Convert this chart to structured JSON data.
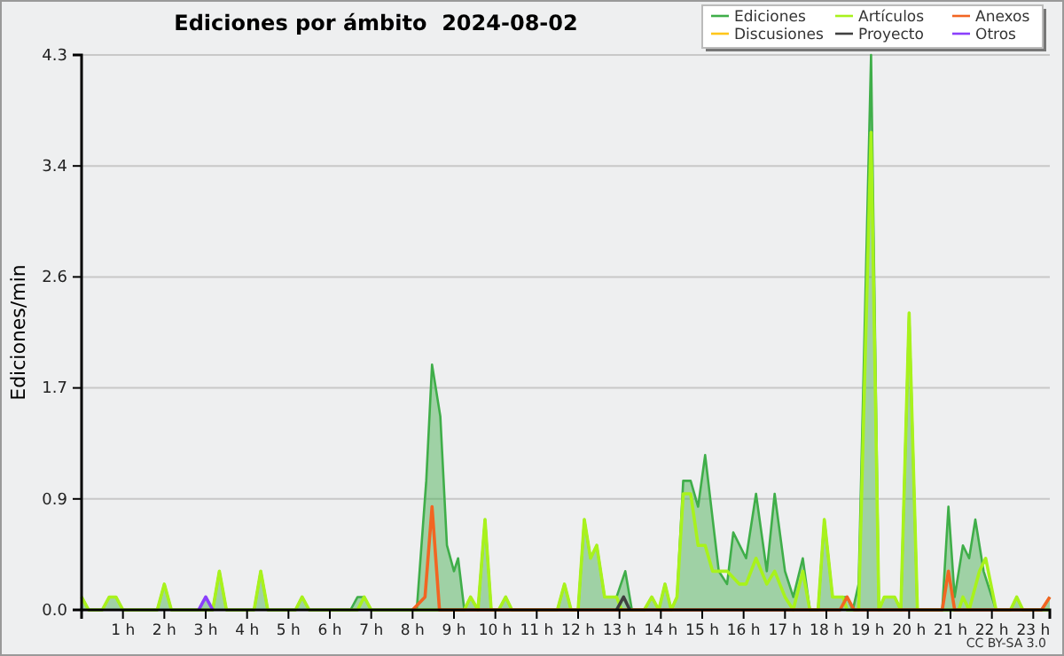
{
  "chart_data": {
    "type": "line",
    "title": "Ediciones por ámbito  2024-08-02",
    "ylabel": "Ediciones/min",
    "annotations": [
      "CC BY-SA 3.0"
    ],
    "xlim": [
      0,
      23.4
    ],
    "xticks": [
      {
        "value": 1,
        "label": "1 h"
      },
      {
        "value": 2,
        "label": "2 h"
      },
      {
        "value": 3,
        "label": "3 h"
      },
      {
        "value": 4,
        "label": "4 h"
      },
      {
        "value": 5,
        "label": "5 h"
      },
      {
        "value": 6,
        "label": "6 h"
      },
      {
        "value": 7,
        "label": "7 h"
      },
      {
        "value": 8,
        "label": "8 h"
      },
      {
        "value": 9,
        "label": "9 h"
      },
      {
        "value": 10,
        "label": "10 h"
      },
      {
        "value": 11,
        "label": "11 h"
      },
      {
        "value": 12,
        "label": "12 h"
      },
      {
        "value": 13,
        "label": "13 h"
      },
      {
        "value": 14,
        "label": "14 h"
      },
      {
        "value": 15,
        "label": "15 h"
      },
      {
        "value": 16,
        "label": "16 h"
      },
      {
        "value": 17,
        "label": "17 h"
      },
      {
        "value": 18,
        "label": "18 h"
      },
      {
        "value": 19,
        "label": "19 h"
      },
      {
        "value": 20,
        "label": "20 h"
      },
      {
        "value": 21,
        "label": "21 h"
      },
      {
        "value": 22,
        "label": "22 h"
      },
      {
        "value": 23,
        "label": "23 h"
      }
    ],
    "ylim": [
      0,
      4.3
    ],
    "yticks": [
      {
        "value": 0,
        "label": "0.0"
      },
      {
        "value": 0.86,
        "label": "0.9"
      },
      {
        "value": 1.72,
        "label": "1.7"
      },
      {
        "value": 2.58,
        "label": "2.6"
      },
      {
        "value": 3.44,
        "label": "3.4"
      },
      {
        "value": 4.3,
        "label": "4.3"
      }
    ],
    "grid": "y",
    "legend": "top right",
    "marker": "none",
    "line_style": "solid",
    "series": [
      {
        "name": "Ediciones",
        "type": "area",
        "color": "#3fae49",
        "x": [
          0,
          0.17,
          0.5,
          0.67,
          0.83,
          1.0,
          1.83,
          2.0,
          2.17,
          2.83,
          3.0,
          3.17,
          3.33,
          3.5,
          4.17,
          4.33,
          4.5,
          5.17,
          5.33,
          5.5,
          6.5,
          6.67,
          6.83,
          7.0,
          8.1,
          8.33,
          8.47,
          8.67,
          8.83,
          9.0,
          9.1,
          9.25,
          9.4,
          9.58,
          9.75,
          9.9,
          10.08,
          10.25,
          10.4,
          11.5,
          11.67,
          11.83,
          12.0,
          12.15,
          12.3,
          12.45,
          12.64,
          12.93,
          13.14,
          13.3,
          13.6,
          13.78,
          13.95,
          14.1,
          14.25,
          14.39,
          14.54,
          14.72,
          14.9,
          15.07,
          15.4,
          15.6,
          15.75,
          16.06,
          16.3,
          16.56,
          16.75,
          17.0,
          17.2,
          17.43,
          17.6,
          17.8,
          17.95,
          18.15,
          18.5,
          18.64,
          18.78,
          19.08,
          19.27,
          19.4,
          19.5,
          19.65,
          19.8,
          20.0,
          20.2,
          20.8,
          20.95,
          21.1,
          21.3,
          21.45,
          21.6,
          21.8,
          22.1,
          22.45,
          22.6,
          22.75,
          23.2,
          23.4
        ],
        "values": [
          0.1,
          0,
          0,
          0.1,
          0.1,
          0,
          0,
          0.2,
          0,
          0,
          0.1,
          0,
          0.3,
          0,
          0,
          0.3,
          0,
          0,
          0.1,
          0,
          0,
          0.1,
          0.1,
          0,
          0,
          1.0,
          1.9,
          1.5,
          0.5,
          0.3,
          0.4,
          0,
          0.1,
          0,
          0.7,
          0,
          0,
          0.1,
          0,
          0,
          0.2,
          0,
          0,
          0.7,
          0.4,
          0.5,
          0.1,
          0.1,
          0.3,
          0,
          0,
          0.1,
          0,
          0.2,
          0,
          0.1,
          1.0,
          1.0,
          0.8,
          1.2,
          0.3,
          0.2,
          0.6,
          0.4,
          0.9,
          0.3,
          0.9,
          0.3,
          0.1,
          0.4,
          0,
          0,
          0.7,
          0.1,
          0.1,
          0,
          0.2,
          4.3,
          0,
          0.1,
          0.1,
          0.1,
          0,
          2.3,
          0,
          0,
          0.8,
          0.1,
          0.5,
          0.4,
          0.7,
          0.3,
          0,
          0,
          0.1,
          0,
          0,
          0.1
        ]
      },
      {
        "name": "Artículos",
        "color": "#a8f21c",
        "x": [
          0,
          0.17,
          0.5,
          0.67,
          0.83,
          1.0,
          1.83,
          2.0,
          2.17,
          3.17,
          3.33,
          3.5,
          4.17,
          4.33,
          4.5,
          5.17,
          5.33,
          5.5,
          6.67,
          6.83,
          7.0,
          9.25,
          9.4,
          9.58,
          9.75,
          9.9,
          10.08,
          10.25,
          10.4,
          11.5,
          11.67,
          11.83,
          12.0,
          12.15,
          12.3,
          12.45,
          12.64,
          12.93,
          13.05,
          13.6,
          13.78,
          13.95,
          14.1,
          14.25,
          14.39,
          14.54,
          14.72,
          14.9,
          15.07,
          15.25,
          15.6,
          15.9,
          16.06,
          16.3,
          16.56,
          16.75,
          17.0,
          17.2,
          17.43,
          17.6,
          17.8,
          17.95,
          18.15,
          18.4,
          18.5,
          18.78,
          19.08,
          19.27,
          19.4,
          19.5,
          19.65,
          19.8,
          20.0,
          20.2,
          21.2,
          21.3,
          21.45,
          21.7,
          21.85,
          22.1,
          22.45,
          22.6,
          22.75,
          23.4
        ],
        "values": [
          0.1,
          0,
          0,
          0.1,
          0.1,
          0,
          0,
          0.2,
          0,
          0,
          0.3,
          0,
          0,
          0.3,
          0,
          0,
          0.1,
          0,
          0,
          0.1,
          0,
          0,
          0.1,
          0,
          0.7,
          0,
          0,
          0.1,
          0,
          0,
          0.2,
          0,
          0,
          0.7,
          0.4,
          0.5,
          0.1,
          0.1,
          0,
          0,
          0.1,
          0,
          0.2,
          0,
          0.1,
          0.9,
          0.9,
          0.5,
          0.5,
          0.3,
          0.3,
          0.2,
          0.2,
          0.4,
          0.2,
          0.3,
          0.1,
          0,
          0.3,
          0,
          0,
          0.7,
          0.1,
          0.1,
          0,
          0,
          3.7,
          0,
          0.1,
          0.1,
          0.1,
          0,
          2.3,
          0,
          0,
          0.1,
          0,
          0.3,
          0.4,
          0,
          0,
          0.1,
          0,
          0
        ]
      },
      {
        "name": "Anexos",
        "color": "#f26522",
        "x": [
          8.0,
          8.3,
          8.47,
          8.65,
          18.33,
          18.5,
          18.67,
          20.8,
          20.95,
          21.1,
          23.2,
          23.4
        ],
        "values": [
          0,
          0.1,
          0.8,
          0,
          0,
          0.1,
          0,
          0,
          0.3,
          0,
          0,
          0.1
        ]
      },
      {
        "name": "Discusiones",
        "color": "#ffc61a"
      },
      {
        "name": "Proyecto",
        "color": "#404040",
        "x": [
          12.93,
          13.1,
          13.25
        ],
        "values": [
          0,
          0.1,
          0
        ]
      },
      {
        "name": "Otros",
        "color": "#8a3ffc",
        "x": [
          2.83,
          3.0,
          3.17
        ],
        "values": [
          0,
          0.1,
          0
        ]
      }
    ]
  }
}
